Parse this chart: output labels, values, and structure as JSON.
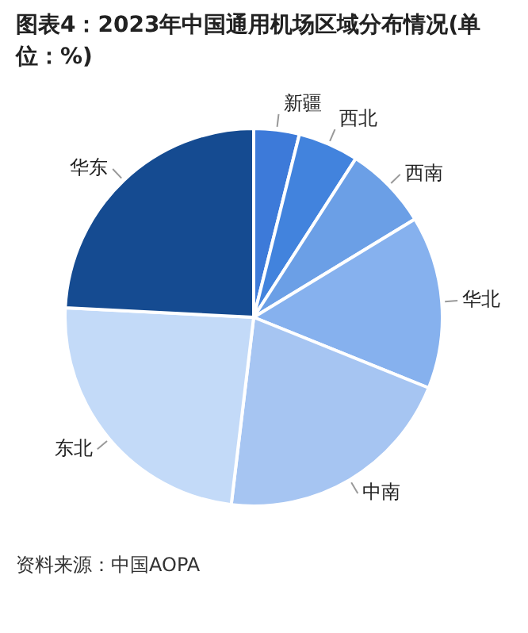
{
  "chart_data": {
    "type": "pie",
    "title": "图表4：2023年中国通用机场区域分布情况(单位：%)",
    "categories": [
      "新疆",
      "西北",
      "西南",
      "华北",
      "中南",
      "东北",
      "华东"
    ],
    "values": [
      3.9,
      5.2,
      7.2,
      14.8,
      20.8,
      23.9,
      24.2
    ],
    "colors": [
      "#3d7ad9",
      "#4283dd",
      "#6b9fe6",
      "#86b1ee",
      "#a6c5f2",
      "#c3daf8",
      "#154b91"
    ],
    "legend": false,
    "annotations": [
      "资料来源：中国AOPA"
    ]
  }
}
